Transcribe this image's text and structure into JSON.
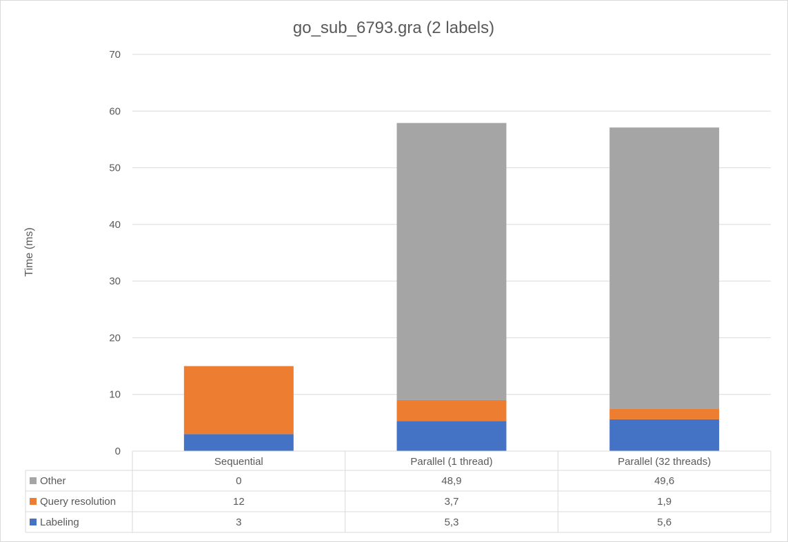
{
  "chart_data": {
    "type": "bar",
    "stacked": true,
    "title": "go_sub_6793.gra (2 labels)",
    "xlabel": "",
    "ylabel": "Time (ms)",
    "ylim": [
      0,
      70
    ],
    "yticks": [
      0,
      10,
      20,
      30,
      40,
      50,
      60,
      70
    ],
    "grid": true,
    "legend_placement": "data-table-left",
    "categories": [
      "Sequential",
      "Parallel (1 thread)",
      "Parallel (32 threads)"
    ],
    "series": [
      {
        "name": "Labeling",
        "values": [
          3,
          5.3,
          5.6
        ],
        "labels": [
          "3",
          "5,3",
          "5,6"
        ],
        "color": "#4472c4"
      },
      {
        "name": "Query resolution",
        "values": [
          12,
          3.7,
          1.9
        ],
        "labels": [
          "12",
          "3,7",
          "1,9"
        ],
        "color": "#ed7d31"
      },
      {
        "name": "Other",
        "values": [
          0,
          48.9,
          49.6
        ],
        "labels": [
          "0",
          "48,9",
          "49,6"
        ],
        "color": "#a5a5a5"
      }
    ],
    "table_row_order": [
      "Other",
      "Query resolution",
      "Labeling"
    ]
  }
}
